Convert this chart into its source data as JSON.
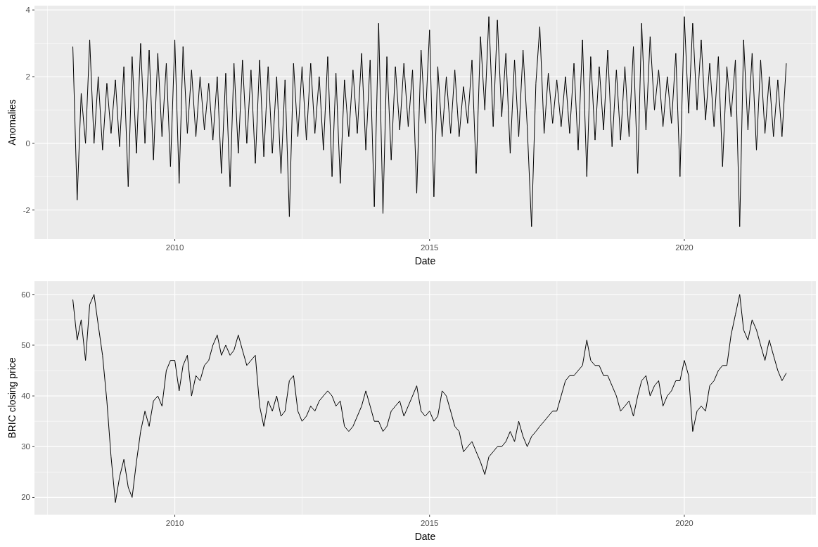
{
  "chart_data": [
    {
      "type": "line",
      "xlabel": "Date",
      "ylabel": "Anomalies",
      "color": "#000000",
      "grid": true,
      "xlim": [
        "2007-04",
        "2022-08"
      ],
      "ylim": [
        -2.87,
        4.13
      ],
      "xticks": [
        "2010",
        "2015",
        "2020"
      ],
      "yticks": [
        -2,
        0,
        2,
        4
      ],
      "x": [
        "2008-01",
        "2008-02",
        "2008-03",
        "2008-04",
        "2008-05",
        "2008-06",
        "2008-07",
        "2008-08",
        "2008-09",
        "2008-10",
        "2008-11",
        "2008-12",
        "2009-01",
        "2009-02",
        "2009-03",
        "2009-04",
        "2009-05",
        "2009-06",
        "2009-07",
        "2009-08",
        "2009-09",
        "2009-10",
        "2009-11",
        "2009-12",
        "2010-01",
        "2010-02",
        "2010-03",
        "2010-04",
        "2010-05",
        "2010-06",
        "2010-07",
        "2010-08",
        "2010-09",
        "2010-10",
        "2010-11",
        "2010-12",
        "2011-01",
        "2011-02",
        "2011-03",
        "2011-04",
        "2011-05",
        "2011-06",
        "2011-07",
        "2011-08",
        "2011-09",
        "2011-10",
        "2011-11",
        "2011-12",
        "2012-01",
        "2012-02",
        "2012-03",
        "2012-04",
        "2012-05",
        "2012-06",
        "2012-07",
        "2012-08",
        "2012-09",
        "2012-10",
        "2012-11",
        "2012-12",
        "2013-01",
        "2013-02",
        "2013-03",
        "2013-04",
        "2013-05",
        "2013-06",
        "2013-07",
        "2013-08",
        "2013-09",
        "2013-10",
        "2013-11",
        "2013-12",
        "2014-01",
        "2014-02",
        "2014-03",
        "2014-04",
        "2014-05",
        "2014-06",
        "2014-07",
        "2014-08",
        "2014-09",
        "2014-10",
        "2014-11",
        "2014-12",
        "2015-01",
        "2015-02",
        "2015-03",
        "2015-04",
        "2015-05",
        "2015-06",
        "2015-07",
        "2015-08",
        "2015-09",
        "2015-10",
        "2015-11",
        "2015-12",
        "2016-01",
        "2016-02",
        "2016-03",
        "2016-04",
        "2016-05",
        "2016-06",
        "2016-07",
        "2016-08",
        "2016-09",
        "2016-10",
        "2016-11",
        "2016-12",
        "2017-01",
        "2017-02",
        "2017-03",
        "2017-04",
        "2017-05",
        "2017-06",
        "2017-07",
        "2017-08",
        "2017-09",
        "2017-10",
        "2017-11",
        "2017-12",
        "2018-01",
        "2018-02",
        "2018-03",
        "2018-04",
        "2018-05",
        "2018-06",
        "2018-07",
        "2018-08",
        "2018-09",
        "2018-10",
        "2018-11",
        "2018-12",
        "2019-01",
        "2019-02",
        "2019-03",
        "2019-04",
        "2019-05",
        "2019-06",
        "2019-07",
        "2019-08",
        "2019-09",
        "2019-10",
        "2019-11",
        "2019-12",
        "2020-01",
        "2020-02",
        "2020-03",
        "2020-04",
        "2020-05",
        "2020-06",
        "2020-07",
        "2020-08",
        "2020-09",
        "2020-10",
        "2020-11",
        "2020-12",
        "2021-01",
        "2021-02",
        "2021-03",
        "2021-04",
        "2021-05",
        "2021-06",
        "2021-07",
        "2021-08",
        "2021-09",
        "2021-10",
        "2021-11",
        "2021-12",
        "2022-01"
      ],
      "values": [
        2.9,
        -1.7,
        1.5,
        0.0,
        3.1,
        0.0,
        2.0,
        -0.2,
        1.8,
        0.3,
        1.9,
        -0.1,
        2.3,
        -1.3,
        2.6,
        -0.3,
        3.0,
        0.0,
        2.8,
        -0.5,
        2.7,
        0.2,
        2.4,
        -0.7,
        3.1,
        -1.2,
        2.9,
        0.3,
        2.2,
        0.2,
        2.0,
        0.4,
        1.8,
        0.1,
        2.0,
        -0.9,
        2.1,
        -1.3,
        2.4,
        -0.3,
        2.5,
        0.0,
        2.2,
        -0.6,
        2.5,
        -0.4,
        2.3,
        -0.3,
        2.0,
        -0.9,
        1.9,
        -2.2,
        2.4,
        0.2,
        2.3,
        0.1,
        2.4,
        0.3,
        2.0,
        -0.2,
        2.6,
        -1.0,
        2.1,
        -1.2,
        1.9,
        0.2,
        2.2,
        0.3,
        2.7,
        -0.2,
        2.5,
        -1.9,
        3.6,
        -2.1,
        2.6,
        -0.5,
        2.3,
        0.4,
        2.4,
        0.5,
        2.2,
        -1.5,
        2.8,
        0.6,
        3.4,
        -1.6,
        2.3,
        0.2,
        2.0,
        0.3,
        2.2,
        0.2,
        1.7,
        0.6,
        2.5,
        -0.9,
        3.2,
        1.0,
        3.8,
        0.5,
        3.7,
        0.8,
        2.7,
        -0.3,
        2.5,
        0.2,
        2.8,
        0.5,
        -2.5,
        1.8,
        3.5,
        0.3,
        2.1,
        0.6,
        1.9,
        0.5,
        2.0,
        0.3,
        2.4,
        -0.2,
        3.1,
        -1.0,
        2.6,
        0.1,
        2.3,
        0.4,
        2.8,
        -0.1,
        2.2,
        0.1,
        2.3,
        0.2,
        2.9,
        -0.9,
        3.6,
        0.4,
        3.2,
        1.0,
        2.2,
        0.5,
        2.0,
        0.6,
        2.7,
        -1.0,
        3.8,
        0.9,
        3.6,
        1.0,
        3.1,
        0.7,
        2.4,
        0.5,
        2.6,
        -0.7,
        2.3,
        0.8,
        2.5,
        -2.5,
        3.1,
        0.4,
        2.7,
        -0.2,
        2.5,
        0.3,
        2.0,
        0.2,
        1.9,
        0.2,
        2.4
      ]
    },
    {
      "type": "line",
      "xlabel": "Date",
      "ylabel": "BRIC closing price",
      "color": "#000000",
      "grid": true,
      "xlim": [
        "2007-04",
        "2022-08"
      ],
      "ylim": [
        16.6,
        62.6
      ],
      "xticks": [
        "2010",
        "2015",
        "2020"
      ],
      "yticks": [
        20,
        30,
        40,
        50,
        60
      ],
      "x": [
        "2008-01",
        "2008-02",
        "2008-03",
        "2008-04",
        "2008-05",
        "2008-06",
        "2008-07",
        "2008-08",
        "2008-09",
        "2008-10",
        "2008-11",
        "2008-12",
        "2009-01",
        "2009-02",
        "2009-03",
        "2009-04",
        "2009-05",
        "2009-06",
        "2009-07",
        "2009-08",
        "2009-09",
        "2009-10",
        "2009-11",
        "2009-12",
        "2010-01",
        "2010-02",
        "2010-03",
        "2010-04",
        "2010-05",
        "2010-06",
        "2010-07",
        "2010-08",
        "2010-09",
        "2010-10",
        "2010-11",
        "2010-12",
        "2011-01",
        "2011-02",
        "2011-03",
        "2011-04",
        "2011-05",
        "2011-06",
        "2011-07",
        "2011-08",
        "2011-09",
        "2011-10",
        "2011-11",
        "2011-12",
        "2012-01",
        "2012-02",
        "2012-03",
        "2012-04",
        "2012-05",
        "2012-06",
        "2012-07",
        "2012-08",
        "2012-09",
        "2012-10",
        "2012-11",
        "2012-12",
        "2013-01",
        "2013-02",
        "2013-03",
        "2013-04",
        "2013-05",
        "2013-06",
        "2013-07",
        "2013-08",
        "2013-09",
        "2013-10",
        "2013-11",
        "2013-12",
        "2014-01",
        "2014-02",
        "2014-03",
        "2014-04",
        "2014-05",
        "2014-06",
        "2014-07",
        "2014-08",
        "2014-09",
        "2014-10",
        "2014-11",
        "2014-12",
        "2015-01",
        "2015-02",
        "2015-03",
        "2015-04",
        "2015-05",
        "2015-06",
        "2015-07",
        "2015-08",
        "2015-09",
        "2015-10",
        "2015-11",
        "2015-12",
        "2016-01",
        "2016-02",
        "2016-03",
        "2016-04",
        "2016-05",
        "2016-06",
        "2016-07",
        "2016-08",
        "2016-09",
        "2016-10",
        "2016-11",
        "2016-12",
        "2017-01",
        "2017-02",
        "2017-03",
        "2017-04",
        "2017-05",
        "2017-06",
        "2017-07",
        "2017-08",
        "2017-09",
        "2017-10",
        "2017-11",
        "2017-12",
        "2018-01",
        "2018-02",
        "2018-03",
        "2018-04",
        "2018-05",
        "2018-06",
        "2018-07",
        "2018-08",
        "2018-09",
        "2018-10",
        "2018-11",
        "2018-12",
        "2019-01",
        "2019-02",
        "2019-03",
        "2019-04",
        "2019-05",
        "2019-06",
        "2019-07",
        "2019-08",
        "2019-09",
        "2019-10",
        "2019-11",
        "2019-12",
        "2020-01",
        "2020-02",
        "2020-03",
        "2020-04",
        "2020-05",
        "2020-06",
        "2020-07",
        "2020-08",
        "2020-09",
        "2020-10",
        "2020-11",
        "2020-12",
        "2021-01",
        "2021-02",
        "2021-03",
        "2021-04",
        "2021-05",
        "2021-06",
        "2021-07",
        "2021-08",
        "2021-09",
        "2021-10",
        "2021-11",
        "2021-12",
        "2022-01"
      ],
      "values": [
        59,
        51,
        55,
        47,
        58,
        60,
        54,
        48,
        39,
        28,
        19,
        24,
        27.5,
        22,
        20,
        27,
        33,
        37,
        34,
        39,
        40,
        38,
        45,
        47,
        47,
        41,
        46,
        48,
        40,
        44,
        43,
        46,
        47,
        50,
        52,
        48,
        50,
        48,
        49,
        52,
        49,
        46,
        47,
        48,
        38,
        34,
        39,
        37,
        40,
        36,
        37,
        43,
        44,
        37,
        35,
        36,
        38,
        37,
        39,
        40,
        41,
        40,
        38,
        39,
        34,
        33,
        34,
        36,
        38,
        41,
        38,
        35,
        35,
        33,
        34,
        37,
        38,
        39,
        36,
        38,
        40,
        42,
        37,
        36,
        37,
        35,
        36,
        41,
        40,
        37,
        34,
        33,
        29,
        30,
        31,
        29,
        27,
        24.5,
        28,
        29,
        30,
        30,
        31,
        33,
        31,
        35,
        32,
        30,
        32,
        33,
        34,
        35,
        36,
        37,
        37,
        40,
        43,
        44,
        44,
        45,
        46,
        51,
        47,
        46,
        46,
        44,
        44,
        42,
        40,
        37,
        38,
        39,
        36,
        40,
        43,
        44,
        40,
        42,
        43,
        38,
        40,
        41,
        43,
        43,
        47,
        44,
        33,
        37,
        38,
        37,
        42,
        43,
        45,
        46,
        46,
        52,
        56,
        60,
        53,
        51,
        55,
        53,
        50,
        47,
        51,
        48,
        45,
        43,
        44.5
      ]
    }
  ]
}
